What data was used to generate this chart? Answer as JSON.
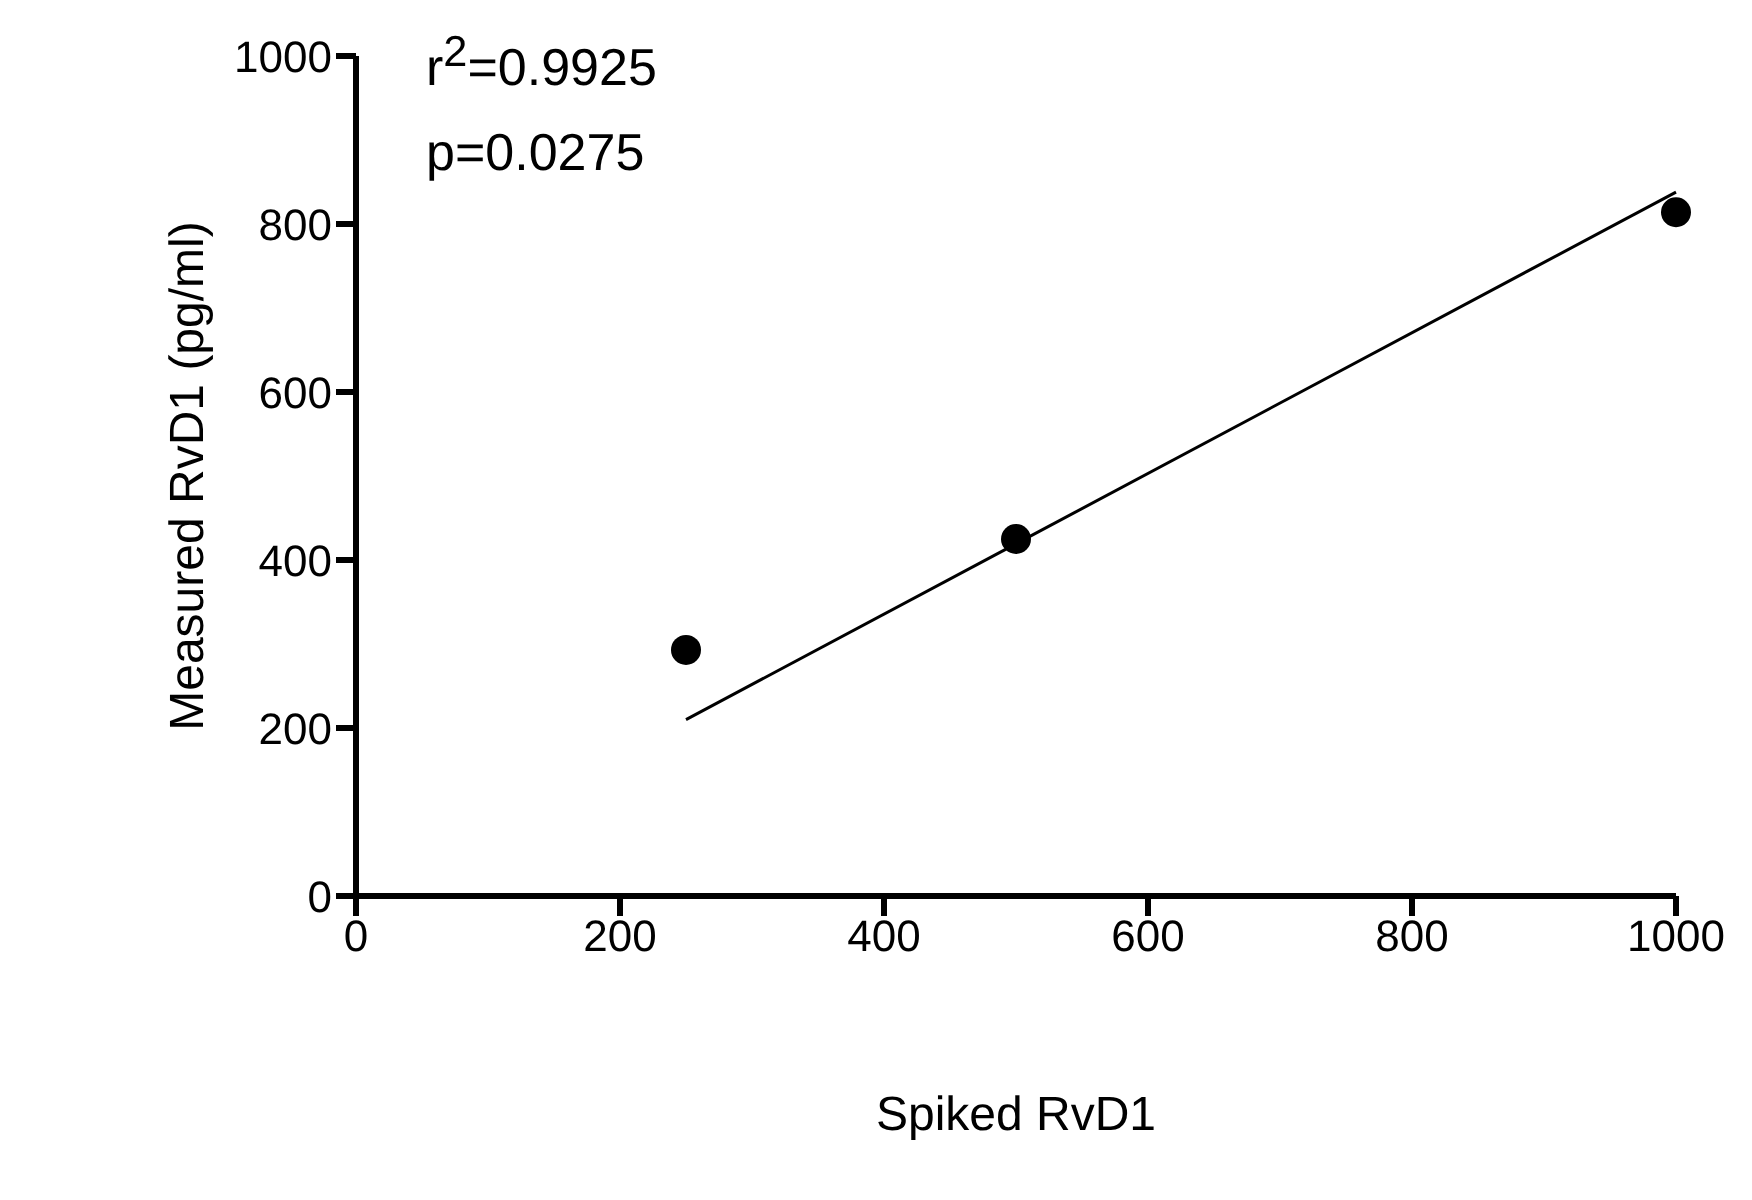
{
  "chart_data": {
    "type": "scatter",
    "xlabel": "Spiked RvD1",
    "ylabel": "Measured RvD1 (pg/ml)",
    "annotations": [
      "r$^{2}$=0.9925",
      "p=0.0275"
    ],
    "x": [
      250,
      500,
      1000
    ],
    "series": [
      {
        "color": "#000000",
        "marker": "circle",
        "values": [
          293,
          425,
          814
        ]
      },
      {
        "type": "line",
        "color": "#000000",
        "x": [
          250,
          1000
        ],
        "values": [
          210,
          838
        ],
        "marker": "none"
      }
    ],
    "xlim": [
      0,
      1000
    ],
    "xticks": [
      0,
      200,
      400,
      600,
      800,
      1000
    ],
    "ylim": [
      0,
      1000
    ],
    "yticks": [
      0,
      200,
      400,
      600,
      800,
      1000
    ],
    "grid": false,
    "legend": false
  }
}
